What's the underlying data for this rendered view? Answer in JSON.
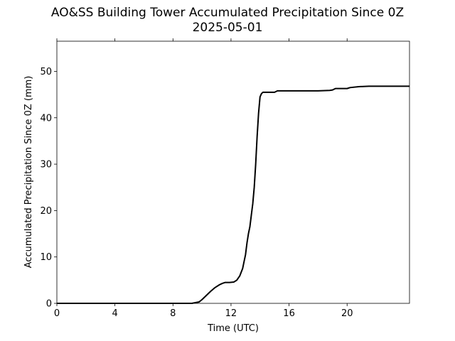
{
  "chart_data": {
    "type": "line",
    "title": "AO&SS Building Tower Accumulated Precipitation Since 0Z",
    "subtitle": "2025-05-01",
    "xlabel": "Time (UTC)",
    "ylabel": "Accumulated Precipitation Since 0Z (mm)",
    "xlim": [
      0,
      24.3
    ],
    "ylim": [
      0,
      56.5
    ],
    "xticks": [
      0,
      4,
      8,
      12,
      16,
      20
    ],
    "yticks": [
      0,
      10,
      20,
      30,
      40,
      50
    ],
    "grid": false,
    "series": [
      {
        "color": "#000000",
        "x": [
          0,
          9.3,
          9.8,
          10.0,
          10.3,
          10.6,
          10.9,
          11.2,
          11.4,
          11.6,
          11.9,
          12.2,
          12.4,
          12.6,
          12.8,
          12.9,
          13.0,
          13.1,
          13.2,
          13.3,
          13.4,
          13.5,
          13.6,
          13.7,
          13.8,
          13.9,
          14.0,
          14.1,
          14.2,
          14.4,
          15.0,
          15.2,
          16.0,
          17.0,
          18.0,
          18.8,
          19.0,
          19.2,
          20.0,
          20.2,
          20.8,
          21.5,
          22.0,
          23.0,
          24.3
        ],
        "y": [
          0,
          0,
          0.3,
          0.8,
          1.7,
          2.6,
          3.4,
          4.0,
          4.3,
          4.5,
          4.5,
          4.6,
          5.0,
          5.9,
          7.5,
          9.0,
          10.5,
          13.0,
          15.0,
          16.5,
          19.0,
          21.5,
          25.0,
          30.0,
          36.0,
          41.0,
          44.5,
          45.2,
          45.5,
          45.5,
          45.5,
          45.8,
          45.8,
          45.8,
          45.8,
          45.9,
          46.0,
          46.3,
          46.3,
          46.5,
          46.7,
          46.8,
          46.8,
          46.8,
          46.8
        ]
      }
    ]
  },
  "colors": {
    "line": "#000000",
    "axes": "#000000",
    "background": "#ffffff"
  }
}
